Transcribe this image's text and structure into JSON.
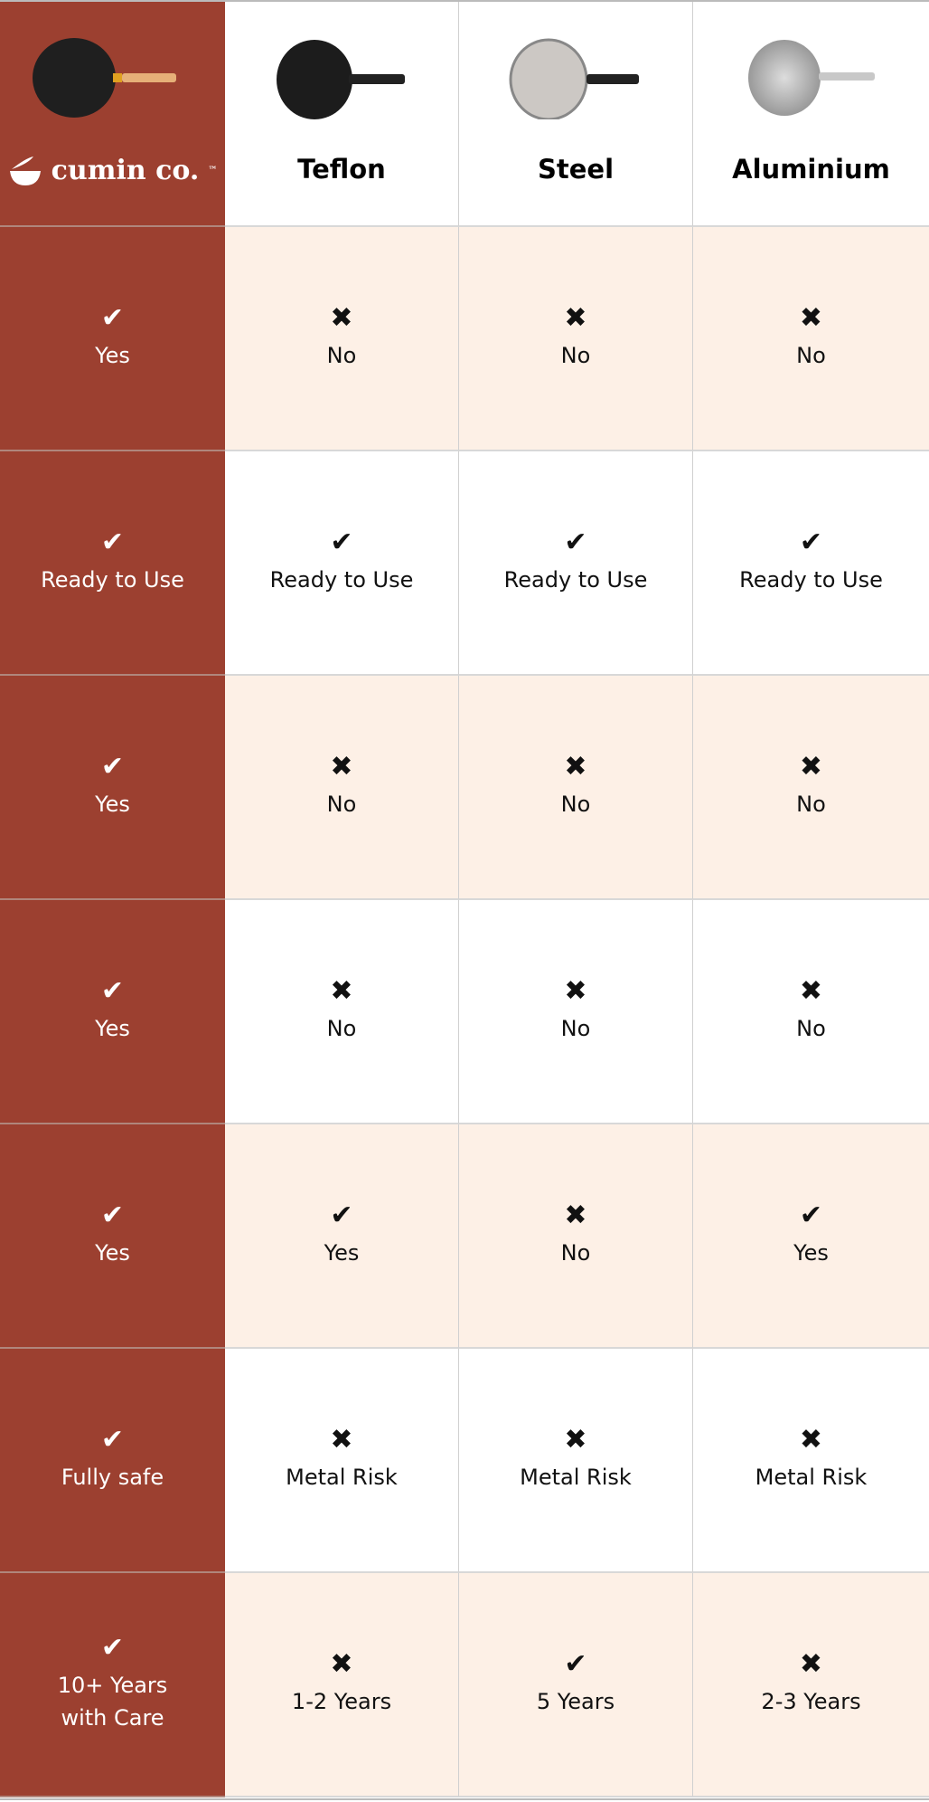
{
  "colors": {
    "brand": "#9C4030",
    "peach": "#FDF0E6"
  },
  "header": {
    "brand_name": "cumin co.",
    "brand_tm": "™",
    "columns": [
      "Teflon",
      "Steel",
      "Aluminium"
    ]
  },
  "rows": [
    {
      "cells": [
        {
          "icon": "check",
          "text": "Yes"
        },
        {
          "icon": "cross",
          "text": "No"
        },
        {
          "icon": "cross",
          "text": "No"
        },
        {
          "icon": "cross",
          "text": "No"
        }
      ]
    },
    {
      "cells": [
        {
          "icon": "check",
          "text": "Ready to Use"
        },
        {
          "icon": "check",
          "text": "Ready to Use"
        },
        {
          "icon": "check",
          "text": "Ready to Use"
        },
        {
          "icon": "check",
          "text": "Ready to Use"
        }
      ]
    },
    {
      "cells": [
        {
          "icon": "check",
          "text": "Yes"
        },
        {
          "icon": "cross",
          "text": "No"
        },
        {
          "icon": "cross",
          "text": "No"
        },
        {
          "icon": "cross",
          "text": "No"
        }
      ]
    },
    {
      "cells": [
        {
          "icon": "check",
          "text": "Yes"
        },
        {
          "icon": "cross",
          "text": "No"
        },
        {
          "icon": "cross",
          "text": "No"
        },
        {
          "icon": "cross",
          "text": "No"
        }
      ]
    },
    {
      "cells": [
        {
          "icon": "check",
          "text": "Yes"
        },
        {
          "icon": "check",
          "text": "Yes"
        },
        {
          "icon": "cross",
          "text": "No"
        },
        {
          "icon": "check",
          "text": "Yes"
        }
      ]
    },
    {
      "cells": [
        {
          "icon": "check",
          "text": "Fully safe"
        },
        {
          "icon": "cross",
          "text": "Metal Risk"
        },
        {
          "icon": "cross",
          "text": "Metal Risk"
        },
        {
          "icon": "cross",
          "text": "Metal Risk"
        }
      ]
    },
    {
      "cells": [
        {
          "icon": "check",
          "text": "10+ Years\nwith Care"
        },
        {
          "icon": "cross",
          "text": "1-2 Years"
        },
        {
          "icon": "check",
          "text": "5 Years"
        },
        {
          "icon": "cross",
          "text": "2-3 Years"
        }
      ]
    }
  ]
}
